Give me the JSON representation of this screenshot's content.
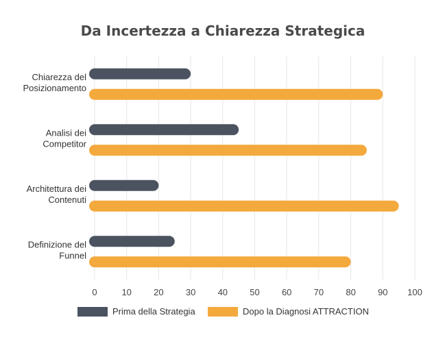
{
  "chart_data": {
    "type": "bar",
    "orientation": "horizontal",
    "title": "Da Incertezza a Chiarezza Strategica",
    "categories": [
      [
        "Chiarezza del",
        "Posizionamento"
      ],
      [
        "Analisi dei",
        "Competitor"
      ],
      [
        "Architettura dei",
        "Contenuti"
      ],
      [
        "Definizione del",
        "Funnel"
      ]
    ],
    "series": [
      {
        "name": "Prima della Strategia",
        "color": "#4b5361",
        "values": [
          30,
          45,
          20,
          25
        ]
      },
      {
        "name": "Dopo la Diagnosi ATTRACTION",
        "color": "#f3a93c",
        "values": [
          90,
          85,
          95,
          80
        ]
      }
    ],
    "xlim": [
      0,
      100
    ],
    "xticks": [
      "0",
      "10",
      "20",
      "30",
      "40",
      "50",
      "60",
      "70",
      "80",
      "90",
      "100"
    ],
    "grid": true,
    "legend_position": "bottom"
  }
}
